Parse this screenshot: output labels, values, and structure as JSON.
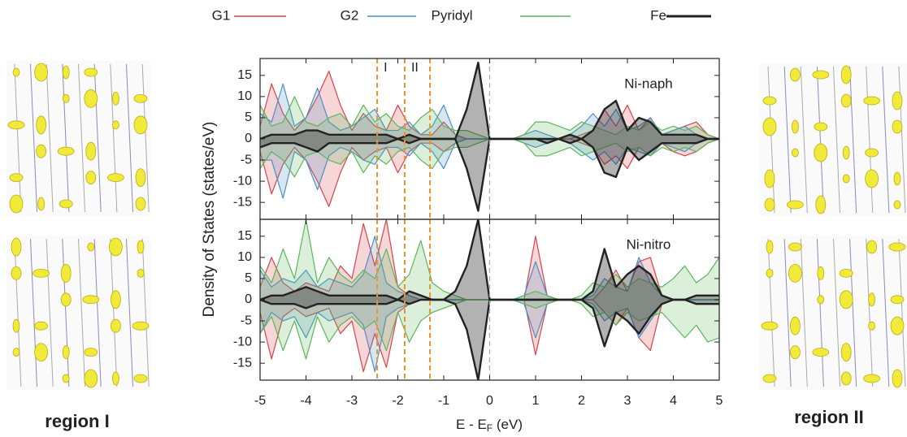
{
  "chart_data": [
    {
      "type": "line",
      "panel_label": "Ni-naph",
      "ylabel": "Density of States (states/eV)",
      "xlim": [
        -5,
        5
      ],
      "ylim": [
        -19,
        19
      ],
      "xticks": [
        -5,
        -4,
        -3,
        -2,
        -1,
        0,
        1,
        2,
        3,
        4,
        5
      ],
      "yticks": [
        -15,
        -10,
        -5,
        0,
        5,
        10,
        15
      ],
      "vlines": [
        {
          "x": -2.45,
          "label": "I",
          "color": "#f0922b"
        },
        {
          "x": -1.85,
          "label": "II",
          "color": "#f0922b"
        },
        {
          "x": -1.3,
          "color": "#f0922b"
        },
        {
          "x": 0,
          "color": "#aaaaaa"
        }
      ],
      "x": [
        -5,
        -4.75,
        -4.5,
        -4.25,
        -4,
        -3.75,
        -3.5,
        -3.25,
        -3,
        -2.75,
        -2.5,
        -2.25,
        -2,
        -1.75,
        -1.5,
        -1.25,
        -1,
        -0.75,
        -0.5,
        -0.25,
        0,
        0.25,
        0.5,
        0.75,
        1,
        1.25,
        1.5,
        1.75,
        2,
        2.25,
        2.5,
        2.75,
        3,
        3.25,
        3.5,
        3.75,
        4,
        4.25,
        4.5,
        4.75,
        5
      ],
      "series": [
        {
          "name": "G1",
          "color": "#d9434b",
          "values": [
            3,
            13,
            6,
            2,
            5,
            10,
            16,
            8,
            2,
            6,
            3,
            2,
            8,
            3,
            1,
            1,
            4,
            1,
            0,
            0,
            0,
            0,
            0,
            0,
            0,
            0,
            0,
            0,
            1,
            2,
            7,
            3,
            8,
            2,
            5,
            1,
            2,
            3,
            4,
            1,
            0
          ],
          "values_down": [
            -3,
            -13,
            -6,
            -2,
            -5,
            -10,
            -16,
            -8,
            -2,
            -5,
            -3,
            -2,
            -8,
            -3,
            -1,
            -1,
            -3,
            -1,
            0,
            0,
            0,
            0,
            0,
            0,
            0,
            0,
            0,
            0,
            -1,
            -2,
            -6,
            -4,
            -7,
            -2,
            -4,
            -1,
            -3,
            -4,
            -3,
            -1,
            0
          ]
        },
        {
          "name": "G2",
          "color": "#4c8fc6",
          "values": [
            6,
            4,
            13,
            3,
            5,
            12,
            4,
            2,
            3,
            5,
            7,
            2,
            2,
            4,
            1,
            3,
            8,
            1,
            0,
            0,
            0,
            0,
            0,
            1,
            2,
            1,
            0,
            1,
            3,
            6,
            3,
            7,
            2,
            3,
            5,
            1,
            2,
            3,
            1,
            0,
            0
          ],
          "values_down": [
            -5,
            -5,
            -14,
            -3,
            -5,
            -12,
            -4,
            -2,
            -3,
            -5,
            -6,
            -2,
            -2,
            -4,
            -1,
            -3,
            -7,
            -1,
            0,
            0,
            0,
            0,
            0,
            -1,
            -2,
            -1,
            0,
            -1,
            -3,
            -5,
            -3,
            -6,
            -2,
            -3,
            -4,
            -1,
            -2,
            -3,
            -1,
            0,
            0
          ]
        },
        {
          "name": "Pyridyl",
          "color": "#5cb65c",
          "values": [
            8,
            3,
            4,
            10,
            4,
            3,
            5,
            6,
            3,
            8,
            4,
            6,
            3,
            2,
            5,
            7,
            3,
            2,
            2,
            1,
            0,
            0,
            0,
            1,
            4,
            4,
            3,
            2,
            4,
            3,
            2,
            1,
            3,
            2,
            4,
            2,
            3,
            2,
            3,
            1,
            0
          ],
          "values_down": [
            -7,
            -3,
            -5,
            -9,
            -4,
            -3,
            -5,
            -6,
            -3,
            -8,
            -4,
            -6,
            -3,
            -2,
            -5,
            -7,
            -3,
            -2,
            -2,
            -1,
            0,
            0,
            0,
            -1,
            -4,
            -4,
            -3,
            -2,
            -4,
            -3,
            -2,
            -1,
            -3,
            -2,
            -4,
            -2,
            -3,
            -2,
            -3,
            -1,
            0
          ]
        },
        {
          "name": "Fe",
          "color": "#222222",
          "values": [
            0,
            1,
            1,
            1,
            2,
            2,
            1,
            1,
            1,
            1,
            1,
            1,
            0,
            1,
            0,
            0,
            0,
            0,
            7,
            18,
            0,
            0,
            0,
            0,
            0,
            0,
            0,
            1,
            0,
            2,
            7,
            9,
            2,
            5,
            4,
            1,
            1,
            1,
            1,
            0,
            0
          ],
          "values_down": [
            -2,
            -1,
            -1,
            -1,
            -2,
            -3,
            -1,
            -1,
            -1,
            -1,
            -1,
            -1,
            0,
            -1,
            0,
            0,
            0,
            0,
            -7,
            -17,
            0,
            0,
            0,
            0,
            0,
            -1,
            0,
            -1,
            0,
            -2,
            -8,
            -9,
            -2,
            -5,
            -3,
            -1,
            -1,
            -1,
            -1,
            0,
            0
          ]
        }
      ]
    },
    {
      "type": "line",
      "panel_label": "Ni-nitro",
      "xlabel": [
        "E - E",
        "F",
        " (eV)"
      ],
      "xlim": [
        -5,
        5
      ],
      "ylim": [
        -19,
        19
      ],
      "xticks": [
        -5,
        -4,
        -3,
        -2,
        -1,
        0,
        1,
        2,
        3,
        4,
        5
      ],
      "yticks": [
        -15,
        -10,
        -5,
        0,
        5,
        10,
        15
      ],
      "vlines": [
        {
          "x": -2.45,
          "color": "#f0922b"
        },
        {
          "x": -1.85,
          "color": "#f0922b"
        },
        {
          "x": -1.3,
          "color": "#f0922b"
        },
        {
          "x": 0,
          "color": "#aaaaaa"
        }
      ],
      "x": [
        -5,
        -4.75,
        -4.5,
        -4.25,
        -4,
        -3.75,
        -3.5,
        -3.25,
        -3,
        -2.75,
        -2.5,
        -2.25,
        -2,
        -1.75,
        -1.5,
        -1.25,
        -1,
        -0.75,
        -0.5,
        -0.25,
        0,
        0.25,
        0.5,
        0.75,
        1,
        1.25,
        1.5,
        1.75,
        2,
        2.25,
        2.5,
        2.75,
        3,
        3.25,
        3.5,
        3.75,
        4,
        4.25,
        4.5,
        4.75,
        5
      ],
      "series": [
        {
          "name": "G1",
          "color": "#d9434b",
          "values": [
            3,
            10,
            4,
            2,
            4,
            3,
            2,
            8,
            5,
            18,
            8,
            19,
            3,
            1,
            0,
            0,
            0,
            0,
            0,
            0,
            0,
            0,
            0,
            0,
            15,
            1,
            0,
            0,
            0,
            0,
            3,
            7,
            2,
            9,
            10,
            1,
            0,
            0,
            0,
            0,
            0
          ],
          "values_down": [
            -3,
            -14,
            -4,
            -2,
            -4,
            -3,
            -2,
            -8,
            -5,
            -17,
            -8,
            -16,
            -3,
            -1,
            0,
            0,
            0,
            0,
            0,
            0,
            0,
            0,
            0,
            0,
            -13,
            -1,
            0,
            0,
            0,
            0,
            -3,
            -6,
            -2,
            -9,
            -12,
            -1,
            0,
            0,
            0,
            0,
            0
          ]
        },
        {
          "name": "G2",
          "color": "#4c8fc6",
          "values": [
            7,
            3,
            5,
            4,
            7,
            3,
            5,
            4,
            3,
            6,
            15,
            4,
            2,
            1,
            0,
            0,
            0,
            0,
            0,
            0,
            0,
            0,
            0,
            1,
            9,
            1,
            0,
            0,
            0,
            1,
            5,
            3,
            2,
            10,
            4,
            1,
            0,
            0,
            0,
            0,
            0
          ],
          "values_down": [
            -8,
            -3,
            -5,
            -4,
            -9,
            -3,
            -5,
            -4,
            -3,
            -6,
            -17,
            -4,
            -2,
            -1,
            0,
            0,
            0,
            0,
            0,
            0,
            0,
            0,
            0,
            -1,
            -9,
            -1,
            0,
            0,
            0,
            -1,
            -5,
            -3,
            -2,
            -9,
            -5,
            -1,
            0,
            0,
            0,
            0,
            0
          ]
        },
        {
          "name": "Pyridyl",
          "color": "#5cb65c",
          "values": [
            8,
            4,
            12,
            5,
            19,
            4,
            10,
            6,
            4,
            7,
            5,
            12,
            3,
            6,
            14,
            4,
            2,
            1,
            0,
            0,
            0,
            0,
            0,
            1,
            2,
            1,
            0,
            0,
            1,
            4,
            3,
            6,
            3,
            5,
            4,
            3,
            5,
            8,
            4,
            6,
            10
          ],
          "values_down": [
            -8,
            -4,
            -12,
            -5,
            -14,
            -4,
            -10,
            -6,
            -4,
            -7,
            -5,
            -12,
            -3,
            -10,
            -5,
            -3,
            -2,
            -1,
            0,
            0,
            0,
            0,
            0,
            -1,
            -2,
            -1,
            0,
            0,
            -1,
            -4,
            -3,
            -6,
            -3,
            -5,
            -4,
            -3,
            -6,
            -9,
            -6,
            -10,
            -9
          ]
        },
        {
          "name": "Fe",
          "color": "#222222",
          "values": [
            0,
            1,
            1,
            2,
            3,
            2,
            1,
            1,
            1,
            1,
            1,
            1,
            0,
            2,
            1,
            0,
            0,
            2,
            8,
            19,
            0,
            0,
            0,
            0,
            0,
            0,
            0,
            0,
            0,
            2,
            12,
            3,
            6,
            8,
            6,
            1,
            0,
            0,
            1,
            1,
            1
          ],
          "values_down": [
            0,
            -1,
            -1,
            -1,
            -2,
            -1,
            -1,
            -1,
            -1,
            -1,
            -1,
            -1,
            0,
            -1,
            0,
            0,
            0,
            -1,
            -7,
            -19,
            0,
            0,
            0,
            0,
            0,
            0,
            0,
            0,
            0,
            -2,
            -11,
            -3,
            -5,
            -8,
            -4,
            -1,
            0,
            0,
            -1,
            -1,
            -1
          ]
        }
      ]
    }
  ],
  "images": [
    {
      "label": "region I"
    },
    {
      "label": "region II"
    }
  ]
}
